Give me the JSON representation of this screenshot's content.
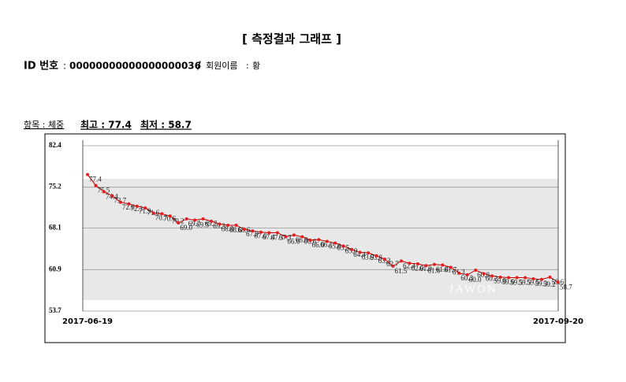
{
  "header": {
    "title": "[ 측정결과 그래프 ]",
    "id_label": "ID 번호",
    "id_sep": ":",
    "id_value": "00000000000000000036",
    "slash": "/",
    "member_label": "회원이름",
    "member_sep": ":",
    "member_name": "황"
  },
  "summary": {
    "item": "항목 : 체중",
    "max": "최고 : 77.4",
    "min": "최저 : 58.7"
  },
  "chart_data": {
    "type": "line",
    "watermark": "JAWON",
    "color": "#e41e1e",
    "categories": [
      "2017-06-19",
      null,
      null,
      null,
      null,
      null,
      null,
      null,
      null,
      null,
      null,
      null,
      null,
      null,
      null,
      null,
      null,
      null,
      null,
      null,
      null,
      null,
      null,
      null,
      null,
      null,
      null,
      null,
      null,
      null,
      null,
      null,
      null,
      null,
      null,
      null,
      null,
      null,
      null,
      null,
      null,
      null,
      null,
      null,
      null,
      null,
      null,
      null,
      null,
      null,
      null,
      null,
      null,
      null,
      null,
      null,
      null,
      "2017-09-20"
    ],
    "values": [
      77.4,
      75.5,
      74.4,
      73.7,
      72.6,
      72.3,
      71.9,
      71.6,
      70.7,
      70.6,
      70.2,
      69.0,
      69.7,
      69.5,
      69.7,
      69.3,
      68.8,
      68.6,
      68.6,
      67.9,
      67.6,
      67.4,
      67.3,
      67.3,
      66.6,
      66.9,
      66.6,
      66.0,
      66.1,
      65.8,
      65.5,
      65.0,
      64.4,
      63.9,
      63.8,
      63.3,
      62.7,
      61.5,
      62.4,
      62.0,
      61.9,
      61.6,
      61.8,
      61.7,
      61.3,
      60.3,
      60.0,
      60.8,
      60.2,
      59.8,
      59.6,
      59.5,
      59.5,
      59.5,
      59.3,
      59.2,
      59.6,
      58.7
    ],
    "value_labels": [
      "77.4",
      "75.5",
      "74.4",
      "73.7",
      "72.6",
      "72.3",
      "71.9",
      "71.6",
      "70.7",
      "70.6",
      "70.2",
      "69.0",
      "69.7",
      "69.5",
      "69.7",
      "69.3",
      "68.8",
      "68.6",
      "68.6",
      "67.9",
      "67.6",
      "67.4",
      "67.3",
      "67.3",
      "66.6",
      "66.9",
      "66.6",
      "66.0",
      "66.1",
      "65.8",
      "65.5",
      "65.0",
      "64.4",
      "63.9",
      "63.8",
      "63.3",
      "62.7",
      "61.5",
      "62.4",
      "62.0",
      "61.9",
      "61.6",
      "61.8",
      "61.7",
      "61.3",
      "60.3",
      "60.0",
      "60.8",
      "60.2",
      "59.8",
      "59.6",
      "59.5",
      "59.5",
      "59.5",
      "59.3",
      "59.2",
      "59.6",
      "58.7"
    ],
    "ylim": [
      53.7,
      82.4
    ],
    "yticks": [
      53.7,
      60.9,
      68.1,
      75.2,
      82.4
    ],
    "grid": true
  }
}
